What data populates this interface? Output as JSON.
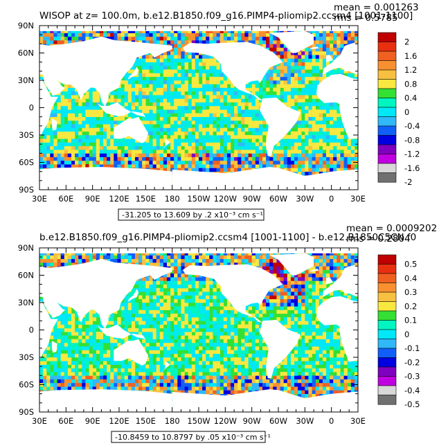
{
  "chart_data": [
    {
      "type": "heatmap",
      "title": "WISOP at z= 100.0m, b.e12.B1850.f09_g16.PIMP4-pliomip2.ccsm4 [1001-1100]",
      "stats": {
        "mean": "mean = 0.001263",
        "rms": "rms = 0.5785"
      },
      "x_ticks": [
        "30E",
        "60E",
        "90E",
        "120E",
        "150E",
        "180",
        "150W",
        "120W",
        "90W",
        "60W",
        "30W",
        "0",
        "30E"
      ],
      "y_ticks": [
        "90N",
        "60N",
        "30N",
        "0",
        "30S",
        "60S",
        "90S"
      ],
      "xlim": [
        30,
        390
      ],
      "ylim": [
        -90,
        90
      ],
      "colorbar_labels": [
        "2",
        "1.6",
        "1.2",
        "0.8",
        "0.4",
        "0",
        "-0.4",
        "-0.8",
        "-1.2",
        "-1.6",
        "-2"
      ],
      "contour_info": "-31.205 to 13.609 by .2 x10⁻³ cm s⁻¹",
      "amplitude": 0.12
    },
    {
      "type": "heatmap",
      "title": "b.e12.B1850.f09_g16.PIMP4-pliomip2.ccsm4 [1001-1100] - b.e12.B1850C5CN.f0",
      "stats": {
        "mean": "mean = 0.0009202",
        "rms": "rms = 0.2804"
      },
      "x_ticks": [
        "30E",
        "60E",
        "90E",
        "120E",
        "150E",
        "180",
        "150W",
        "120W",
        "90W",
        "60W",
        "30W",
        "0",
        "30E"
      ],
      "y_ticks": [
        "90N",
        "60N",
        "30N",
        "0",
        "30S",
        "60S",
        "90S"
      ],
      "xlim": [
        30,
        390
      ],
      "ylim": [
        -90,
        90
      ],
      "colorbar_labels": [
        "0.5",
        "0.4",
        "0.3",
        "0.2",
        "0.1",
        "0",
        "-0.1",
        "-0.2",
        "-0.3",
        "-0.4",
        "-0.5"
      ],
      "contour_info": "-10.8459 to 10.8797 by .05 x10⁻³ cm s⁻¹",
      "amplitude": 0.35
    }
  ],
  "colors": {
    "land": "#ffffff",
    "near_zero_pos": "#33e033",
    "near_zero_neg": "#00f5c0",
    "palette": [
      "#c00000",
      "#e83010",
      "#f06020",
      "#f89030",
      "#f8c040",
      "#f8e840",
      "#33e033",
      "#00f5c0",
      "#00e8f8",
      "#30b8f8",
      "#1060f8",
      "#0000e0",
      "#8000c0",
      "#c000e0",
      "#d8d8d8",
      "#707070"
    ]
  }
}
